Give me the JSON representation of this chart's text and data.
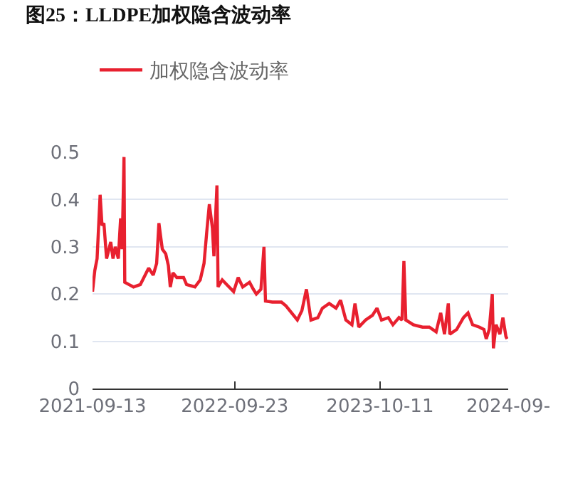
{
  "chart_data": {
    "type": "line",
    "title": "图25：LLDPE加权隐含波动率",
    "x": [
      "2021-09-13",
      "2021-09-19",
      "2021-09-25",
      "2021-10-03",
      "2021-10-08",
      "2021-10-13",
      "2021-10-20",
      "2021-10-31",
      "2021-11-06",
      "2021-11-12",
      "2021-11-20",
      "2021-11-26",
      "2021-11-30",
      "2021-12-05",
      "2021-12-07",
      "2021-12-18",
      "2021-12-30",
      "2022-01-17",
      "2022-02-08",
      "2022-02-20",
      "2022-03-01",
      "2022-03-07",
      "2022-03-16",
      "2022-03-25",
      "2022-04-01",
      "2022-04-06",
      "2022-04-13",
      "2022-04-23",
      "2022-05-11",
      "2022-05-19",
      "2022-06-10",
      "2022-06-24",
      "2022-07-04",
      "2022-07-11",
      "2022-07-18",
      "2022-07-26",
      "2022-07-30",
      "2022-08-07",
      "2022-08-10",
      "2022-08-21",
      "2022-09-02",
      "2022-09-20",
      "2022-10-02",
      "2022-10-14",
      "2022-11-01",
      "2022-11-11",
      "2022-11-19",
      "2022-12-01",
      "2022-12-09",
      "2022-12-13",
      "2022-12-31",
      "2023-01-24",
      "2023-02-05",
      "2023-03-07",
      "2023-03-19",
      "2023-03-31",
      "2023-04-12",
      "2023-04-30",
      "2023-05-12",
      "2023-05-30",
      "2023-06-17",
      "2023-06-29",
      "2023-07-13",
      "2023-07-29",
      "2023-08-06",
      "2023-08-16",
      "2023-09-03",
      "2023-09-21",
      "2023-10-03",
      "2023-10-15",
      "2023-11-02",
      "2023-11-14",
      "2023-11-30",
      "2023-12-08",
      "2023-12-13",
      "2023-12-18",
      "2024-01-07",
      "2024-01-31",
      "2024-02-18",
      "2024-03-07",
      "2024-03-19",
      "2024-03-29",
      "2024-04-08",
      "2024-04-12",
      "2024-04-30",
      "2024-05-18",
      "2024-05-30",
      "2024-06-11",
      "2024-06-29",
      "2024-07-11",
      "2024-07-17",
      "2024-07-25",
      "2024-08-02",
      "2024-08-05",
      "2024-08-12",
      "2024-08-22",
      "2024-08-30",
      "2024-09-07",
      "2024-09-10"
    ],
    "series": [
      {
        "name": "加权隐含波动率",
        "color": "#e8202f",
        "values": [
          0.205,
          0.25,
          0.275,
          0.41,
          0.345,
          0.35,
          0.275,
          0.31,
          0.275,
          0.3,
          0.275,
          0.36,
          0.295,
          0.49,
          0.225,
          0.22,
          0.215,
          0.22,
          0.255,
          0.24,
          0.265,
          0.35,
          0.295,
          0.285,
          0.26,
          0.215,
          0.245,
          0.235,
          0.235,
          0.22,
          0.215,
          0.23,
          0.265,
          0.33,
          0.39,
          0.34,
          0.28,
          0.43,
          0.215,
          0.23,
          0.22,
          0.205,
          0.235,
          0.215,
          0.225,
          0.21,
          0.2,
          0.21,
          0.3,
          0.185,
          0.183,
          0.183,
          0.175,
          0.145,
          0.165,
          0.21,
          0.145,
          0.15,
          0.17,
          0.18,
          0.17,
          0.187,
          0.145,
          0.135,
          0.18,
          0.13,
          0.145,
          0.155,
          0.17,
          0.145,
          0.15,
          0.135,
          0.15,
          0.145,
          0.27,
          0.145,
          0.135,
          0.13,
          0.13,
          0.12,
          0.16,
          0.115,
          0.18,
          0.115,
          0.125,
          0.15,
          0.16,
          0.135,
          0.13,
          0.125,
          0.105,
          0.125,
          0.2,
          0.085,
          0.135,
          0.115,
          0.15,
          0.11,
          0.105
        ]
      }
    ],
    "xlim": [
      "2021-09-13",
      "2024-09-13"
    ],
    "xticks": [
      {
        "value": "2021-09-13",
        "label": "2021-09-13"
      },
      {
        "value": "2022-09-23",
        "label": "2022-09-23"
      },
      {
        "value": "2023-10-11",
        "label": "2023-10-11"
      },
      {
        "value": "2024-09-13",
        "label": "2024-09-"
      }
    ],
    "ylim": [
      0,
      0.5
    ],
    "yticks": [
      0,
      0.1,
      0.2,
      0.3,
      0.4,
      0.5
    ],
    "grid": "y",
    "legend": "top left",
    "marker": "none",
    "line_style": "solid"
  }
}
